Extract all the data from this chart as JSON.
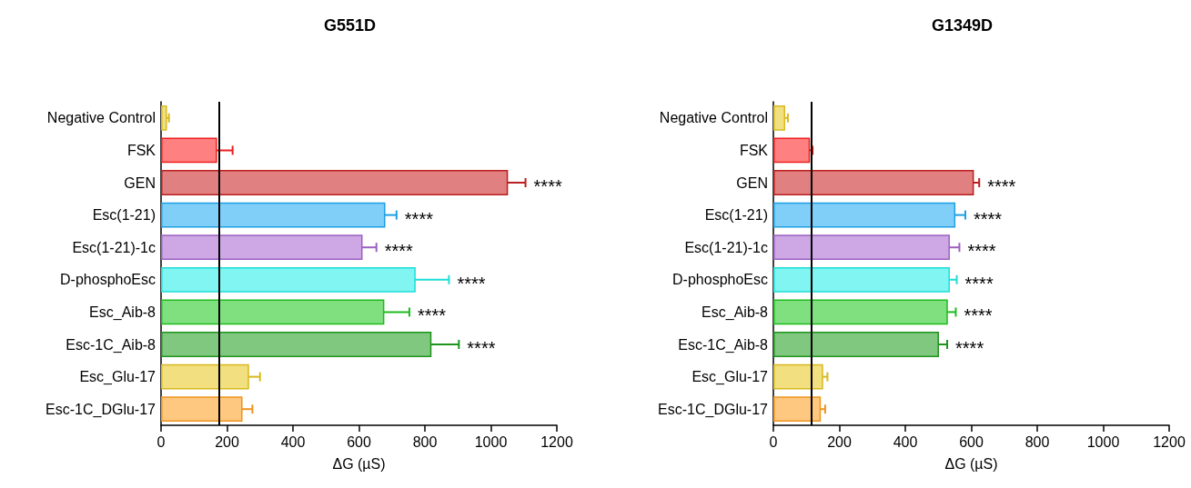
{
  "chart_data": [
    {
      "type": "bar",
      "orientation": "horizontal",
      "title": "G551D",
      "xlabel": "ΔG (µS)",
      "categories": [
        "Negative Control",
        "FSK",
        "GEN",
        "Esc(1-21)",
        "Esc(1-21)-1c",
        "D-phosphoEsc",
        "Esc_Aib-8",
        "Esc-1C_Aib-8",
        "Esc_Glu-17",
        "Esc-1C_DGlu-17"
      ],
      "values": [
        18,
        170,
        1052,
        680,
        611,
        772,
        677,
        820,
        267,
        247
      ],
      "errors": [
        6,
        47,
        53,
        34,
        42,
        101,
        76,
        83,
        33,
        30
      ],
      "colors": [
        "#f2df80",
        "#ff8080",
        "#e08080",
        "#80cff8",
        "#cda8e4",
        "#80f5f2",
        "#80e080",
        "#80c880",
        "#f2df80",
        "#ffc880"
      ],
      "xlim": [
        0,
        1200
      ],
      "xticks": [
        0,
        200,
        400,
        600,
        800,
        1000,
        1200
      ],
      "grid": false,
      "ref_lines": [
        {
          "axis": "x",
          "value": 175,
          "color": "#000000",
          "line_style": "solid"
        }
      ],
      "annotations": [
        {
          "text": "****",
          "x": 1105,
          "y": "GEN"
        },
        {
          "text": "****",
          "x": 714,
          "y": "Esc(1-21)"
        },
        {
          "text": "****",
          "x": 653,
          "y": "Esc(1-21)-1c"
        },
        {
          "text": "****",
          "x": 873,
          "y": "D-phosphoEsc"
        },
        {
          "text": "****",
          "x": 753,
          "y": "Esc_Aib-8"
        },
        {
          "text": "****",
          "x": 903,
          "y": "Esc-1C_Aib-8"
        }
      ]
    },
    {
      "type": "bar",
      "orientation": "horizontal",
      "title": "G1349D",
      "xlabel": "ΔG (µS)",
      "categories": [
        "Negative Control",
        "FSK",
        "GEN",
        "Esc(1-21)",
        "Esc(1-21)-1c",
        "D-phosphoEsc",
        "Esc_Aib-8",
        "Esc-1C_Aib-8",
        "Esc_Glu-17",
        "Esc-1C_DGlu-17"
      ],
      "values": [
        36,
        111,
        608,
        552,
        535,
        535,
        529,
        502,
        151,
        144
      ],
      "errors": [
        8,
        8,
        16,
        30,
        29,
        21,
        24,
        25,
        13,
        13
      ],
      "colors": [
        "#f2df80",
        "#ff8080",
        "#e08080",
        "#80cff8",
        "#cda8e4",
        "#80f5f2",
        "#80e080",
        "#80c880",
        "#f2df80",
        "#ffc880"
      ],
      "xlim": [
        0,
        1200
      ],
      "xticks": [
        0,
        200,
        400,
        600,
        800,
        1000,
        1200
      ],
      "grid": false,
      "ref_lines": [
        {
          "axis": "x",
          "value": 116,
          "color": "#000000",
          "line_style": "solid"
        }
      ],
      "annotations": [
        {
          "text": "****",
          "x": 624,
          "y": "GEN"
        },
        {
          "text": "****",
          "x": 582,
          "y": "Esc(1-21)"
        },
        {
          "text": "****",
          "x": 564,
          "y": "Esc(1-21)-1c"
        },
        {
          "text": "****",
          "x": 556,
          "y": "D-phosphoEsc"
        },
        {
          "text": "****",
          "x": 553,
          "y": "Esc_Aib-8"
        },
        {
          "text": "****",
          "x": 527,
          "y": "Esc-1C_Aib-8"
        }
      ]
    }
  ]
}
